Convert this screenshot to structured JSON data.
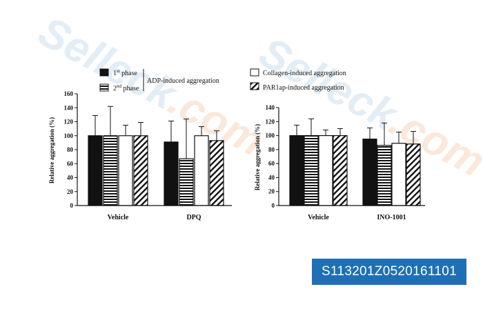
{
  "watermark": {
    "brand": "Selleck",
    "domain": ".com"
  },
  "code_label": "S113201Z0520161101",
  "legend": {
    "items": [
      {
        "label": "1st phase",
        "fill": "solid-black",
        "group": "ADP-induced aggregation"
      },
      {
        "label": "2nd phase",
        "fill": "horizontal-stripes",
        "group": "ADP-induced aggregation"
      },
      {
        "label": "Collagen-induced aggregation",
        "fill": "white"
      },
      {
        "label": "PAR1ap-induced aggregation",
        "fill": "diagonal-stripes"
      }
    ],
    "group_label": "ADP-induced aggregation"
  },
  "chart_data": [
    {
      "type": "bar",
      "ylabel": "Relative aggregation (%)",
      "ylim": [
        0,
        160
      ],
      "yticks": [
        0,
        20,
        40,
        60,
        80,
        100,
        120,
        140,
        160
      ],
      "categories": [
        "Vehicle",
        "DPQ"
      ],
      "series": [
        {
          "name": "1st phase",
          "values": [
            100,
            91
          ],
          "errors": [
            29,
            30
          ]
        },
        {
          "name": "2nd phase",
          "values": [
            100,
            67
          ],
          "errors": [
            42,
            57
          ]
        },
        {
          "name": "Collagen-induced aggregation",
          "values": [
            100,
            100
          ],
          "errors": [
            15,
            13
          ]
        },
        {
          "name": "PAR1ap-induced aggregation",
          "values": [
            100,
            93
          ],
          "errors": [
            19,
            14
          ]
        }
      ]
    },
    {
      "type": "bar",
      "ylabel": "Relative aggregation (%)",
      "ylim": [
        0,
        140
      ],
      "yticks": [
        0,
        20,
        40,
        60,
        80,
        100,
        120,
        140
      ],
      "categories": [
        "Vehicle",
        "INO-1001"
      ],
      "series": [
        {
          "name": "1st phase",
          "values": [
            100,
            95
          ],
          "errors": [
            15,
            16
          ]
        },
        {
          "name": "2nd phase",
          "values": [
            100,
            86
          ],
          "errors": [
            24,
            32
          ]
        },
        {
          "name": "Collagen-induced aggregation",
          "values": [
            100,
            89
          ],
          "errors": [
            8,
            16
          ]
        },
        {
          "name": "PAR1ap-induced aggregation",
          "values": [
            100,
            88
          ],
          "errors": [
            10,
            18
          ]
        }
      ]
    }
  ]
}
